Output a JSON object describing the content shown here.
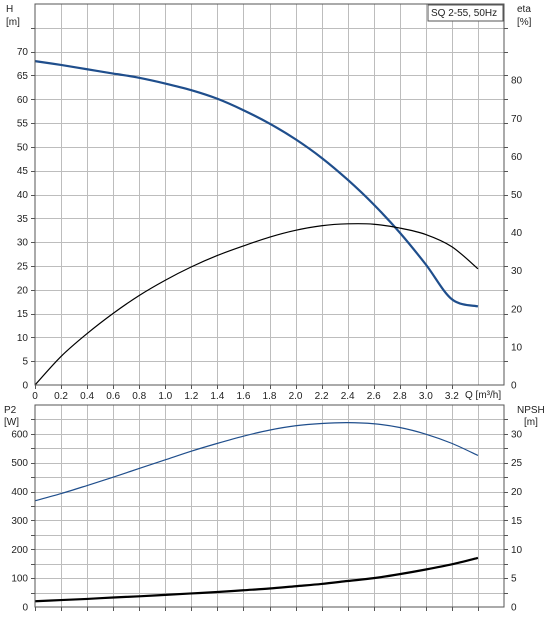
{
  "chart_data": [
    {
      "type": "line",
      "title": "SQ 2-55, 50Hz",
      "xlabel": "Q [m³/h]",
      "ylabel_left": [
        "H",
        "[m]"
      ],
      "ylabel_right": [
        "eta",
        "[%]"
      ],
      "xlim": [
        0,
        3.6
      ],
      "x_ticks": [
        "0",
        "0.2",
        "0.4",
        "0.6",
        "0.8",
        "1.0",
        "1.2",
        "1.4",
        "1.6",
        "1.8",
        "2.0",
        "2.2",
        "2.4",
        "2.6",
        "2.8",
        "3.0",
        "3.2"
      ],
      "ylim_left": [
        0,
        80
      ],
      "ylim_right": [
        0,
        100
      ],
      "y_ticks_left": [
        "0",
        "5",
        "10",
        "15",
        "20",
        "25",
        "30",
        "35",
        "40",
        "45",
        "50",
        "55",
        "60",
        "65",
        "70"
      ],
      "y_ticks_right": [
        "0",
        "10",
        "20",
        "30",
        "40",
        "50",
        "60",
        "70",
        "80"
      ],
      "grid": true,
      "series": [
        {
          "axis": "left",
          "color": "#1f4e8c",
          "x": [
            0,
            0.2,
            0.4,
            0.6,
            0.65,
            0.8,
            1.0,
            1.2,
            1.4,
            1.6,
            1.8,
            2.0,
            2.2,
            2.4,
            2.6,
            2.8,
            3.0,
            3.2,
            3.4
          ],
          "y": [
            68,
            67.2,
            66.3,
            65.4,
            65.2,
            64.5,
            63.3,
            61.9,
            60.1,
            57.7,
            54.9,
            51.6,
            47.7,
            43.1,
            37.9,
            32.0,
            25.3,
            18.0,
            16.5
          ]
        },
        {
          "axis": "right",
          "color": "#000000",
          "x": [
            0,
            0.2,
            0.4,
            0.6,
            0.8,
            1.0,
            1.2,
            1.4,
            1.6,
            1.8,
            2.0,
            2.2,
            2.4,
            2.6,
            2.8,
            3.0,
            3.2,
            3.4
          ],
          "y": [
            0,
            7.5,
            13.5,
            18.8,
            23.5,
            27.5,
            31.0,
            34.0,
            36.5,
            38.8,
            40.6,
            41.8,
            42.3,
            42.2,
            41.2,
            39.5,
            36.3,
            30.5
          ]
        }
      ]
    },
    {
      "type": "line",
      "xlim": [
        0,
        3.6
      ],
      "ylabel_left": [
        "P2",
        "[W]"
      ],
      "ylabel_right": [
        "NPSH",
        "[m]"
      ],
      "ylim_left": [
        0,
        700
      ],
      "ylim_right": [
        0,
        35
      ],
      "y_ticks_left": [
        "0",
        "100",
        "200",
        "300",
        "400",
        "500",
        "600"
      ],
      "y_ticks_right": [
        "0",
        "5",
        "10",
        "15",
        "20",
        "25",
        "30"
      ],
      "grid": true,
      "series": [
        {
          "axis": "left",
          "color": "#1f4e8c",
          "x": [
            0,
            0.2,
            0.4,
            0.6,
            0.8,
            1.0,
            1.2,
            1.4,
            1.6,
            1.8,
            2.0,
            2.2,
            2.4,
            2.6,
            2.8,
            3.0,
            3.2,
            3.4
          ],
          "y": [
            368,
            393,
            421,
            450,
            480,
            510,
            540,
            567,
            592,
            613,
            628,
            636,
            639,
            635,
            622,
            599,
            567,
            525
          ]
        },
        {
          "axis": "right",
          "color": "#000000",
          "x": [
            0,
            0.2,
            0.4,
            0.6,
            0.8,
            1.0,
            1.2,
            1.4,
            1.6,
            1.8,
            2.0,
            2.2,
            2.4,
            2.6,
            2.8,
            3.0,
            3.2,
            3.4
          ],
          "y": [
            1.0,
            1.2,
            1.4,
            1.65,
            1.85,
            2.1,
            2.35,
            2.6,
            2.9,
            3.2,
            3.6,
            4.0,
            4.5,
            5.0,
            5.7,
            6.5,
            7.4,
            8.5
          ]
        }
      ]
    }
  ]
}
